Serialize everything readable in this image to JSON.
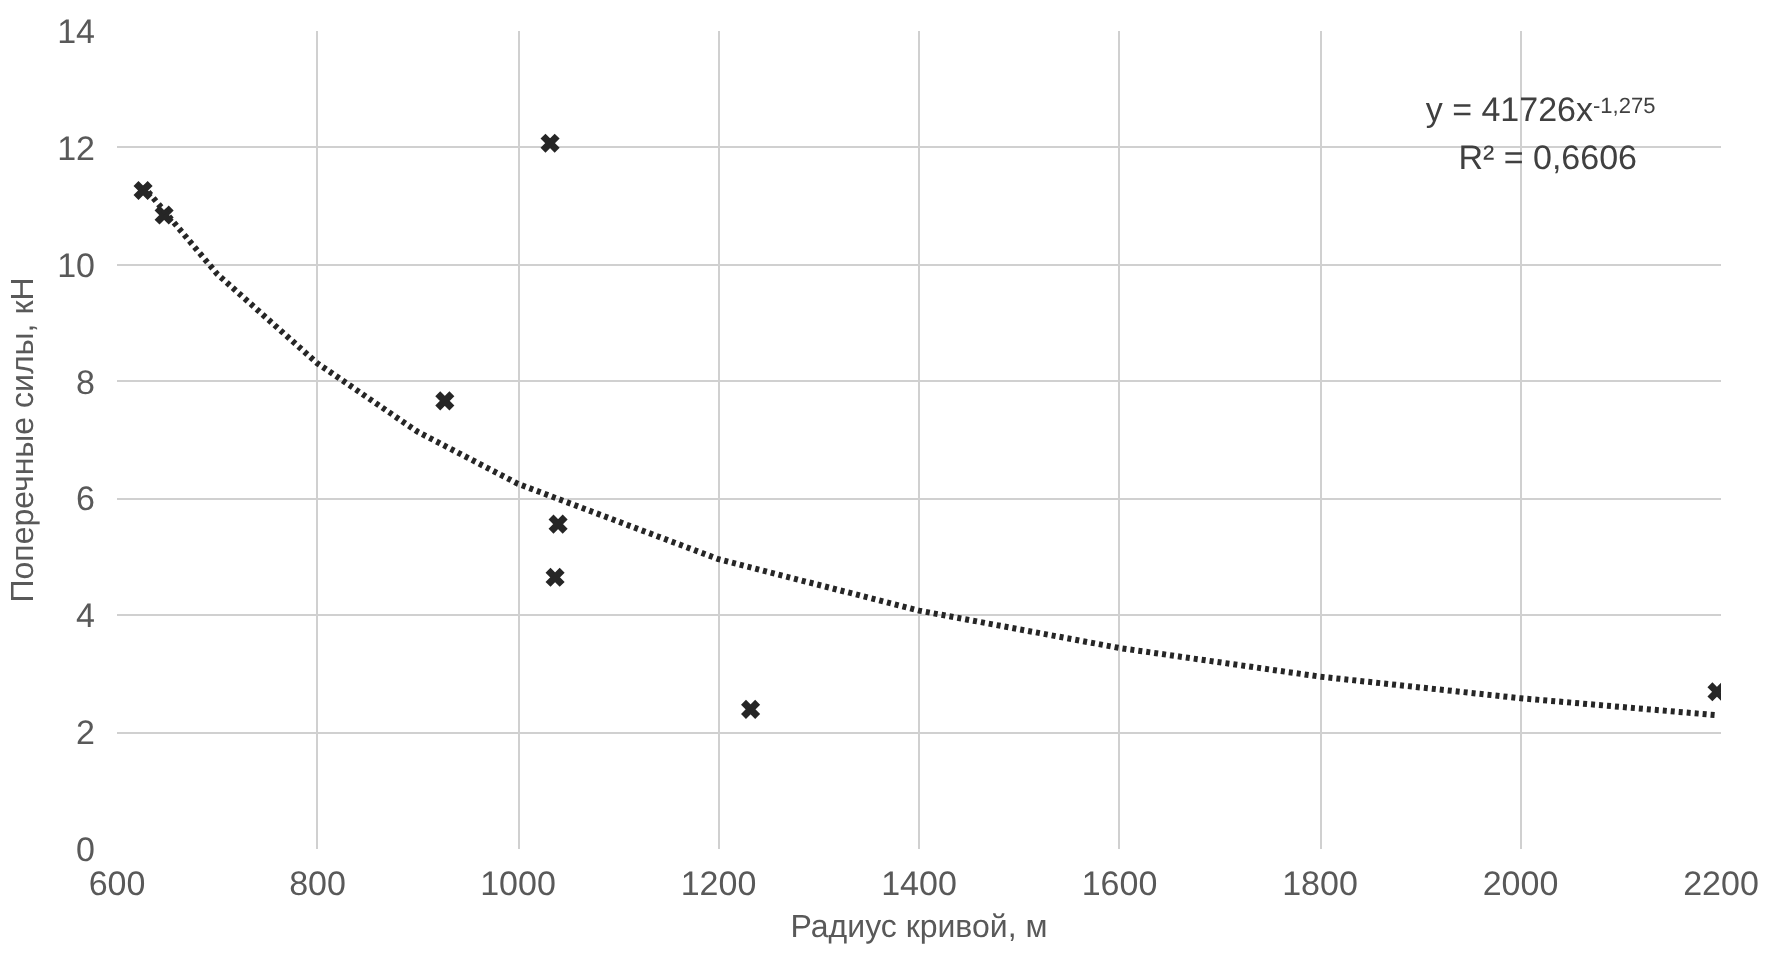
{
  "chart_data": {
    "type": "scatter",
    "xlabel": "Радиус кривой, м",
    "ylabel": "Поперечные силы, кН",
    "xlim": [
      600,
      2200
    ],
    "xticks": [
      600,
      800,
      1000,
      1200,
      1400,
      1600,
      1800,
      2000,
      2200
    ],
    "ylim": [
      0,
      14
    ],
    "yticks": [
      0,
      2,
      4,
      6,
      8,
      10,
      12,
      14
    ],
    "grid": true,
    "series": [
      {
        "marker": "cross",
        "color": "#262626",
        "x": [
          626,
          647,
          927,
          1032,
          1040,
          1037,
          1232,
          2196
        ],
        "values": [
          11.27,
          10.85,
          7.67,
          12.08,
          5.56,
          4.65,
          2.39,
          2.69
        ]
      },
      {
        "type": "line",
        "line_style": "dotted",
        "color": "#262626",
        "x": [
          626,
          700,
          800,
          900,
          1000,
          1200,
          1400,
          1600,
          1800,
          2000,
          2196
        ],
        "values": [
          11.35,
          9.84,
          8.31,
          7.14,
          6.25,
          4.96,
          4.08,
          3.44,
          2.95,
          2.58,
          2.29
        ]
      }
    ],
    "annotations": [
      "y = 41726x$^{-1,275}$",
      "R² = 0,6606"
    ]
  }
}
